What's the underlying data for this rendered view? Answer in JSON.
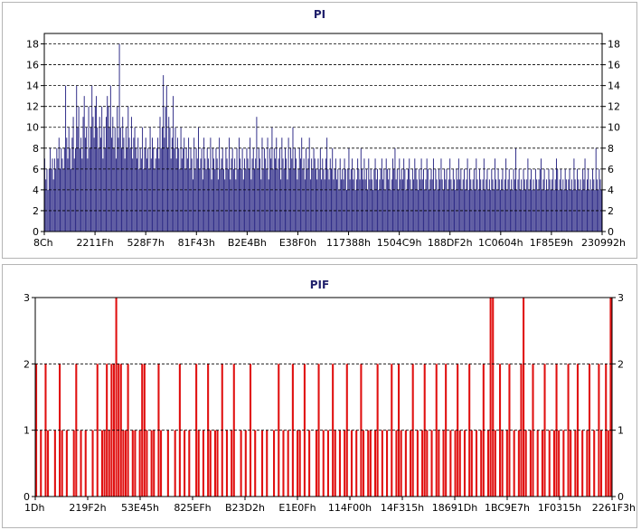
{
  "chart_data": [
    {
      "type": "bar",
      "title": "PI",
      "xlabel": "",
      "ylabel": "",
      "ylim": [
        0,
        19
      ],
      "yticks": [
        0,
        2,
        4,
        6,
        8,
        10,
        12,
        14,
        16,
        18
      ],
      "xtick_labels": [
        "8Ch",
        "2211Fh",
        "528F7h",
        "81F43h",
        "B2E4Bh",
        "E38F0h",
        "117388h",
        "1504C9h",
        "188DF2h",
        "1C0604h",
        "1F85E9h",
        "230992h"
      ],
      "grid": "horizontal-dashed",
      "colors": {
        "bars": "#2d2a86",
        "frame": "#000000"
      },
      "series": [
        {
          "values": [
            7,
            5,
            6,
            4,
            6,
            8,
            6,
            7,
            5,
            7,
            6,
            8,
            7,
            9,
            6,
            8,
            7,
            6,
            8,
            14,
            9,
            7,
            10,
            8,
            6,
            9,
            11,
            7,
            8,
            14,
            10,
            12,
            8,
            9,
            7,
            11,
            13,
            9,
            10,
            7,
            12,
            8,
            10,
            14,
            11,
            9,
            12,
            13,
            10,
            8,
            11,
            9,
            12,
            7,
            10,
            8,
            11,
            13,
            12,
            10,
            14,
            9,
            11,
            8,
            10,
            7,
            12,
            9,
            18,
            10,
            8,
            11,
            9,
            7,
            10,
            8,
            12,
            9,
            8,
            11,
            7,
            9,
            10,
            8,
            7,
            9,
            6,
            8,
            7,
            10,
            6,
            8,
            9,
            7,
            8,
            6,
            10,
            7,
            9,
            8,
            6,
            7,
            8,
            9,
            7,
            11,
            8,
            10,
            15,
            9,
            12,
            14,
            8,
            11,
            10,
            7,
            9,
            13,
            8,
            10,
            7,
            9,
            8,
            6,
            10,
            7,
            8,
            9,
            6,
            8,
            7,
            9,
            6,
            8,
            7,
            5,
            9,
            6,
            8,
            7,
            10,
            6,
            7,
            8,
            5,
            9,
            7,
            6,
            8,
            7,
            6,
            9,
            5,
            8,
            7,
            6,
            8,
            7,
            5,
            9,
            6,
            7,
            8,
            6,
            5,
            8,
            7,
            6,
            9,
            5,
            7,
            8,
            6,
            7,
            5,
            8,
            6,
            9,
            7,
            6,
            8,
            5,
            7,
            6,
            8,
            7,
            6,
            9,
            5,
            7,
            8,
            6,
            7,
            11,
            6,
            8,
            7,
            5,
            9,
            6,
            8,
            7,
            6,
            9,
            5,
            8,
            7,
            10,
            6,
            8,
            7,
            9,
            6,
            7,
            8,
            5,
            9,
            7,
            6,
            8,
            7,
            5,
            9,
            6,
            8,
            7,
            10,
            6,
            8,
            7,
            5,
            6,
            8,
            7,
            9,
            6,
            7,
            5,
            8,
            6,
            7,
            9,
            5,
            7,
            6,
            8,
            7,
            6,
            5,
            7,
            6,
            8,
            5,
            7,
            6,
            5,
            7,
            9,
            6,
            5,
            7,
            6,
            8,
            5,
            6,
            7,
            5,
            6,
            4,
            7,
            5,
            6,
            5,
            7,
            6,
            4,
            6,
            8,
            5,
            6,
            7,
            5,
            6,
            4,
            5,
            7,
            6,
            5,
            8,
            6,
            5,
            7,
            5,
            6,
            4,
            7,
            5,
            6,
            5,
            4,
            6,
            7,
            5,
            6,
            4,
            5,
            6,
            7,
            5,
            6,
            4,
            7,
            6,
            5,
            6,
            4,
            5,
            7,
            6,
            8,
            5,
            6,
            4,
            7,
            5,
            6,
            5,
            7,
            6,
            4,
            5,
            6,
            7,
            5,
            4,
            6,
            5,
            7,
            6,
            5,
            4,
            6,
            5,
            7,
            5,
            6,
            4,
            5,
            7,
            6,
            4,
            5,
            6,
            5,
            7,
            4,
            6,
            5,
            4,
            6,
            5,
            7,
            5,
            4,
            6,
            5,
            6,
            4,
            5,
            7,
            5,
            4,
            6,
            5,
            4,
            6,
            5,
            7,
            5,
            6,
            4,
            5,
            6,
            4,
            5,
            7,
            4,
            6,
            5,
            4,
            5,
            6,
            4,
            7,
            5,
            4,
            6,
            5,
            4,
            5,
            7,
            4,
            5,
            6,
            4,
            5,
            4,
            6,
            5,
            4,
            7,
            5,
            4,
            6,
            5,
            4,
            5,
            6,
            4,
            5,
            7,
            4,
            5,
            6,
            4,
            5,
            4,
            6,
            5,
            8,
            4,
            5,
            6,
            4,
            5,
            4,
            6,
            5,
            4,
            5,
            7,
            4,
            5,
            6,
            4,
            5,
            4,
            6,
            5,
            4,
            5,
            6,
            7,
            4,
            5,
            6,
            4,
            5,
            4,
            6,
            5,
            4,
            5,
            6,
            4,
            5,
            7,
            6,
            4,
            5,
            6,
            4,
            5,
            4,
            6,
            5,
            4,
            5,
            6,
            4,
            5,
            4,
            7,
            5,
            4,
            6,
            5,
            4,
            5,
            4,
            6,
            5,
            7,
            4,
            5,
            6,
            4,
            5,
            4,
            6,
            5,
            4,
            8,
            5,
            4,
            6,
            5,
            4
          ]
        }
      ]
    },
    {
      "type": "bar",
      "title": "PIF",
      "xlabel": "",
      "ylabel": "",
      "ylim": [
        0,
        3
      ],
      "yticks": [
        0,
        1,
        2,
        3
      ],
      "xtick_labels": [
        "1Dh",
        "219F2h",
        "53E45h",
        "825EFh",
        "B23D2h",
        "E1E0Fh",
        "114F00h",
        "14F315h",
        "18691Dh",
        "1BC9E7h",
        "1F0315h",
        "2261F3h"
      ],
      "grid": "horizontal-dashed",
      "colors": {
        "bars": "#e01010",
        "frame": "#000000"
      },
      "series": [
        {
          "values": [
            2,
            0,
            1,
            0,
            2,
            1,
            0,
            0,
            1,
            0,
            2,
            1,
            0,
            1,
            0,
            0,
            1,
            2,
            0,
            1,
            0,
            1,
            0,
            0,
            1,
            0,
            2,
            0,
            1,
            1,
            2,
            1,
            2,
            2,
            3,
            2,
            2,
            1,
            1,
            2,
            0,
            1,
            1,
            0,
            1,
            2,
            2,
            1,
            0,
            1,
            1,
            0,
            2,
            1,
            0,
            0,
            1,
            0,
            0,
            1,
            0,
            2,
            0,
            1,
            0,
            1,
            0,
            0,
            2,
            1,
            0,
            1,
            0,
            2,
            1,
            0,
            1,
            1,
            0,
            2,
            0,
            1,
            0,
            1,
            2,
            0,
            0,
            1,
            0,
            1,
            0,
            2,
            0,
            1,
            0,
            0,
            1,
            0,
            1,
            0,
            0,
            1,
            0,
            2,
            0,
            1,
            0,
            1,
            0,
            2,
            0,
            1,
            1,
            0,
            2,
            0,
            1,
            0,
            0,
            1,
            2,
            0,
            1,
            0,
            1,
            0,
            2,
            1,
            0,
            1,
            0,
            1,
            2,
            0,
            1,
            0,
            1,
            0,
            2,
            1,
            0,
            1,
            1,
            0,
            1,
            2,
            0,
            1,
            0,
            1,
            0,
            2,
            0,
            1,
            2,
            1,
            0,
            1,
            0,
            1,
            2,
            0,
            1,
            0,
            1,
            2,
            1,
            0,
            1,
            0,
            2,
            1,
            0,
            1,
            2,
            0,
            1,
            0,
            1,
            2,
            1,
            0,
            1,
            0,
            2,
            1,
            0,
            1,
            0,
            1,
            2,
            0,
            1,
            3,
            3,
            1,
            0,
            2,
            1,
            0,
            1,
            2,
            0,
            1,
            0,
            1,
            2,
            3,
            1,
            0,
            1,
            2,
            0,
            1,
            0,
            1,
            2,
            0,
            1,
            0,
            1,
            2,
            1,
            0,
            1,
            0,
            2,
            1,
            0,
            1,
            2,
            0,
            1,
            0,
            1,
            2,
            0,
            1,
            0,
            2,
            1,
            0,
            2,
            1,
            3
          ]
        }
      ]
    }
  ]
}
